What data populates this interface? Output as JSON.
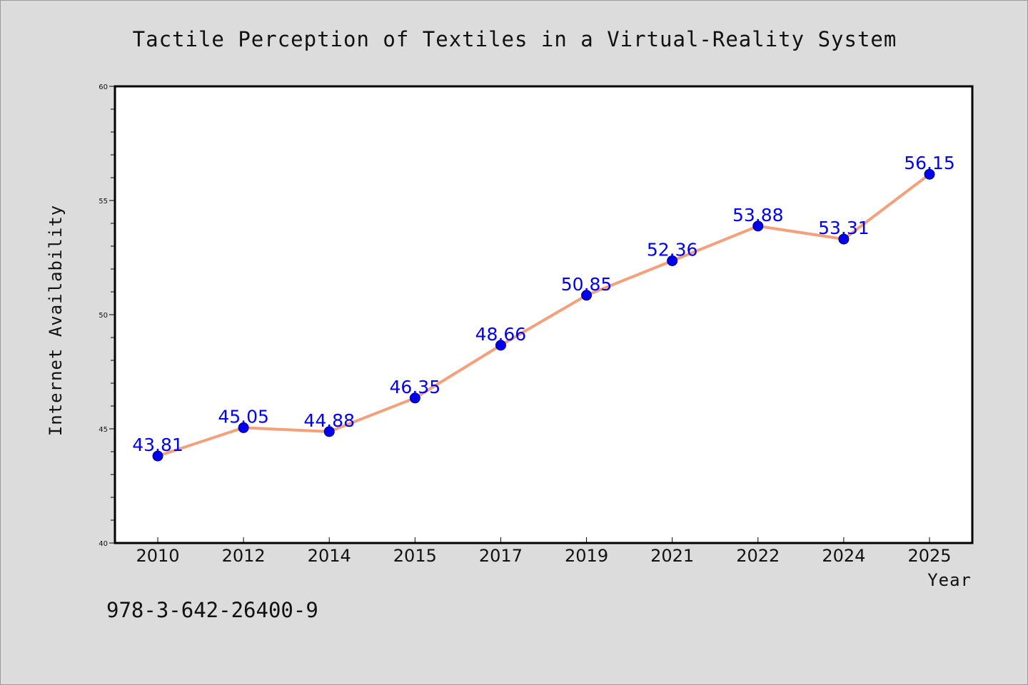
{
  "chart_data": {
    "type": "line",
    "title": "Tactile Perception of Textiles in a Virtual-Reality System",
    "xlabel": "Year",
    "ylabel": "Internet Availability",
    "categories": [
      "2010",
      "2012",
      "2014",
      "2015",
      "2017",
      "2019",
      "2021",
      "2022",
      "2024",
      "2025"
    ],
    "series": [
      {
        "values": [
          43.81,
          45.05,
          44.88,
          46.35,
          48.66,
          50.85,
          52.36,
          53.88,
          53.31,
          56.15
        ]
      }
    ],
    "data_labels": [
      "43.81",
      "45.05",
      "44.88",
      "46.35",
      "48.66",
      "50.85",
      "52.36",
      "53.88",
      "53.31",
      "56.15"
    ],
    "ylim": [
      40,
      60
    ],
    "yticks": [
      "40",
      "45",
      "50",
      "55",
      "60"
    ],
    "grid": false,
    "legend": "none",
    "colors": {
      "line": "#f5a07a",
      "marker": "#0000ee",
      "marker_edge": "#000080",
      "data_label": "#0000ff",
      "background": "#dcdcdc",
      "plot_background": "#ffffff"
    }
  },
  "footer": {
    "text": "978-3-642-26400-9"
  }
}
